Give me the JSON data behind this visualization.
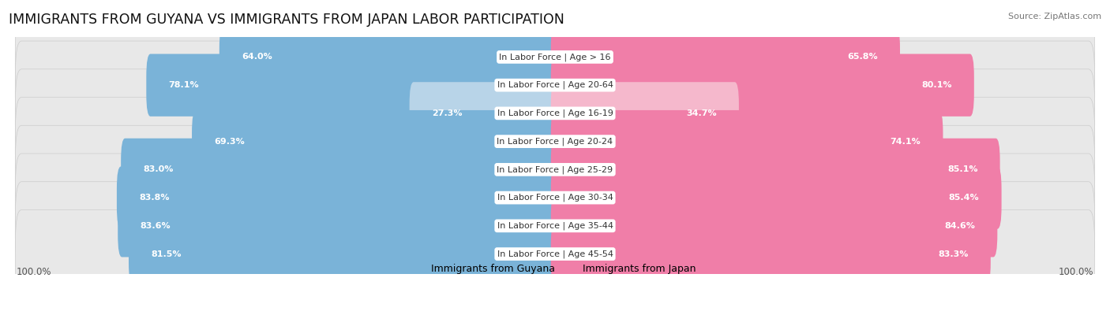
{
  "title": "IMMIGRANTS FROM GUYANA VS IMMIGRANTS FROM JAPAN LABOR PARTICIPATION",
  "source": "Source: ZipAtlas.com",
  "categories": [
    "In Labor Force | Age > 16",
    "In Labor Force | Age 20-64",
    "In Labor Force | Age 16-19",
    "In Labor Force | Age 20-24",
    "In Labor Force | Age 25-29",
    "In Labor Force | Age 30-34",
    "In Labor Force | Age 35-44",
    "In Labor Force | Age 45-54"
  ],
  "guyana_values": [
    64.0,
    78.1,
    27.3,
    69.3,
    83.0,
    83.8,
    83.6,
    81.5
  ],
  "japan_values": [
    65.8,
    80.1,
    34.7,
    74.1,
    85.1,
    85.4,
    84.6,
    83.3
  ],
  "guyana_color": "#7ab3d8",
  "guyana_color_light": "#b8d4e8",
  "japan_color": "#f07ea8",
  "japan_color_light": "#f5b8cc",
  "bar_height": 0.62,
  "row_bg_color": "#e8e8e8",
  "max_val": 100.0,
  "legend_guyana": "Immigrants from Guyana",
  "legend_japan": "Immigrants from Japan",
  "title_fontsize": 12.5,
  "label_fontsize": 8.0,
  "value_fontsize": 8.0,
  "axis_label_fontsize": 8.5
}
